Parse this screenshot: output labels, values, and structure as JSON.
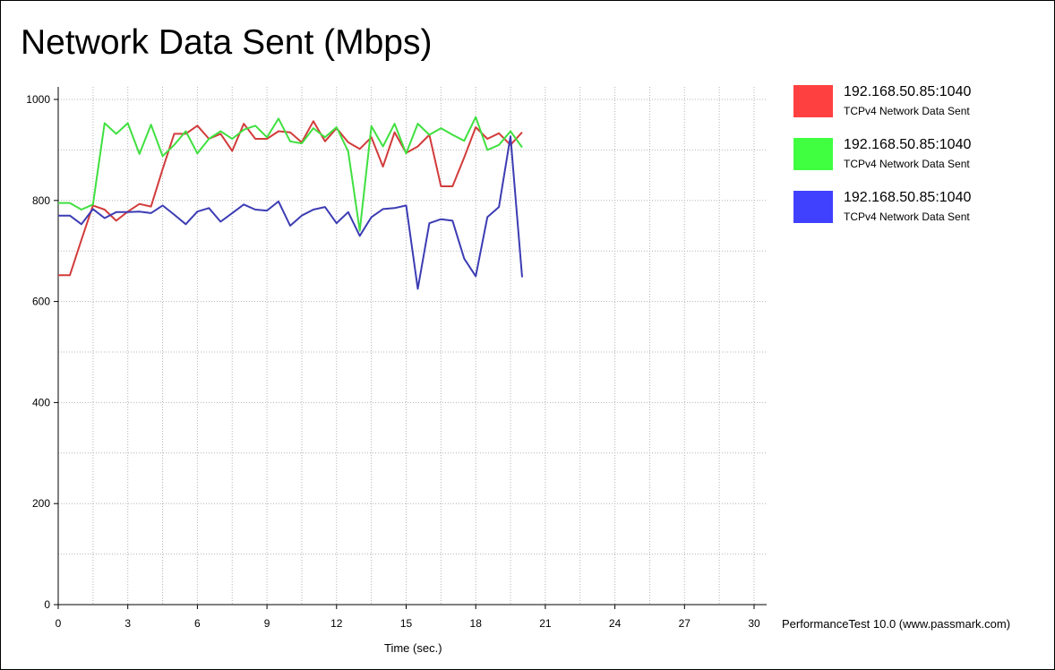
{
  "chart_data": {
    "type": "line",
    "title": "Network Data Sent (Mbps)",
    "xlabel": "Time (sec.)",
    "ylabel": "",
    "xlim": [
      0,
      30
    ],
    "ylim": [
      0,
      1000
    ],
    "x_ticks": [
      0,
      3,
      6,
      9,
      12,
      15,
      18,
      21,
      24,
      27,
      30
    ],
    "y_ticks": [
      0,
      200,
      400,
      600,
      800,
      1000
    ],
    "grid": true,
    "legend_position": "right",
    "x": [
      0,
      0.5,
      1,
      1.5,
      2,
      2.5,
      3,
      3.5,
      4,
      4.5,
      5,
      5.5,
      6,
      6.5,
      7,
      7.5,
      8,
      8.5,
      9,
      9.5,
      10,
      10.5,
      11,
      11.5,
      12,
      12.5,
      13,
      13.5,
      14,
      14.5,
      15,
      15.5,
      16,
      16.5,
      17,
      17.5,
      18,
      18.5,
      19,
      19.5,
      20
    ],
    "series": [
      {
        "name": "192.168.50.85:1040",
        "subtitle": "TCPv4 Network Data Sent",
        "color": "#ff4040",
        "line_color": "#d23c3c",
        "values": [
          652,
          652,
          722,
          790,
          782,
          760,
          778,
          793,
          788,
          862,
          932,
          932,
          948,
          922,
          932,
          898,
          952,
          922,
          922,
          937,
          935,
          915,
          957,
          917,
          943,
          915,
          902,
          925,
          867,
          935,
          894,
          907,
          930,
          828,
          828,
          885,
          945,
          922,
          933,
          910,
          935
        ]
      },
      {
        "name": "192.168.50.85:1040",
        "subtitle": "TCPv4 Network Data Sent",
        "color": "#40ff40",
        "line_color": "#40e040",
        "values": [
          795,
          795,
          782,
          792,
          953,
          932,
          953,
          892,
          950,
          888,
          910,
          937,
          893,
          922,
          937,
          922,
          940,
          948,
          925,
          962,
          917,
          913,
          943,
          925,
          945,
          897,
          740,
          947,
          907,
          952,
          893,
          952,
          930,
          943,
          930,
          918,
          965,
          900,
          910,
          937,
          905
        ]
      },
      {
        "name": "192.168.50.85:1040",
        "subtitle": "TCPv4 Network Data Sent",
        "color": "#4040ff",
        "line_color": "#3c3cb4",
        "values": [
          770,
          770,
          753,
          783,
          765,
          777,
          777,
          778,
          775,
          790,
          772,
          753,
          778,
          785,
          758,
          775,
          792,
          782,
          780,
          798,
          750,
          770,
          782,
          787,
          755,
          777,
          730,
          767,
          783,
          785,
          790,
          625,
          755,
          763,
          760,
          685,
          650,
          767,
          787,
          927,
          648
        ]
      }
    ]
  },
  "footer": {
    "credit": "PerformanceTest 10.0 (www.passmark.com)"
  }
}
